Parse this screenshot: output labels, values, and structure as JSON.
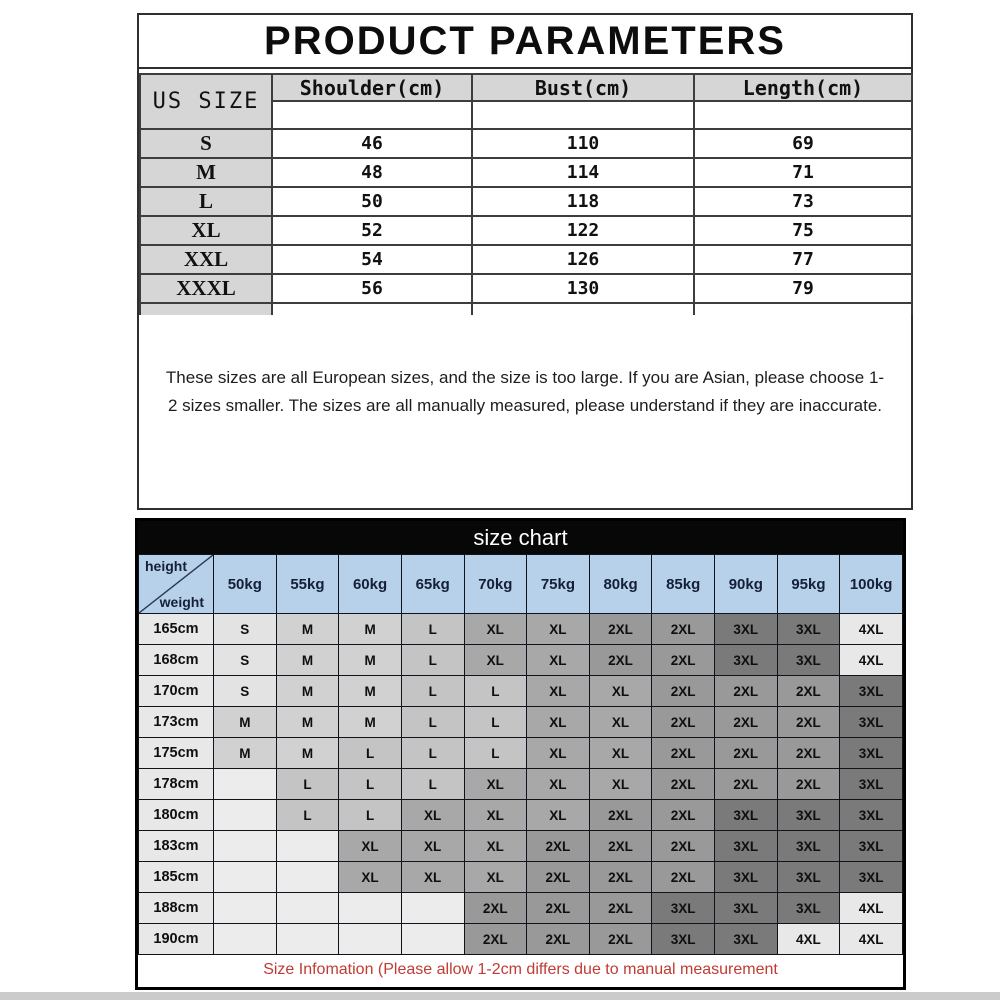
{
  "title": "PRODUCT PARAMETERS",
  "product_table": {
    "corner_label": "US SIZE",
    "columns": [
      "Shoulder(cm)",
      "Bust(cm)",
      "Length(cm)"
    ],
    "rows": [
      {
        "size": "S",
        "values": [
          "46",
          "110",
          "69"
        ]
      },
      {
        "size": "M",
        "values": [
          "48",
          "114",
          "71"
        ]
      },
      {
        "size": "L",
        "values": [
          "50",
          "118",
          "73"
        ]
      },
      {
        "size": "XL",
        "values": [
          "52",
          "122",
          "75"
        ]
      },
      {
        "size": "XXL",
        "values": [
          "54",
          "126",
          "77"
        ]
      },
      {
        "size": "XXXL",
        "values": [
          "56",
          "130",
          "79"
        ]
      }
    ]
  },
  "note": "These sizes are all European sizes, and the size is too large. If you are Asian, please choose 1-2 sizes smaller. The sizes are all manually measured, please understand if they are inaccurate.",
  "size_chart": {
    "title": "size chart",
    "corner": {
      "top_label": "height",
      "bottom_label": "weight"
    },
    "weight_columns": [
      "50kg",
      "55kg",
      "60kg",
      "65kg",
      "70kg",
      "75kg",
      "80kg",
      "85kg",
      "90kg",
      "95kg",
      "100kg"
    ],
    "rows": [
      {
        "height": "165cm",
        "cells": [
          "S",
          "M",
          "M",
          "L",
          "XL",
          "XL",
          "2XL",
          "2XL",
          "3XL",
          "3XL",
          "4XL"
        ]
      },
      {
        "height": "168cm",
        "cells": [
          "S",
          "M",
          "M",
          "L",
          "XL",
          "XL",
          "2XL",
          "2XL",
          "3XL",
          "3XL",
          "4XL"
        ]
      },
      {
        "height": "170cm",
        "cells": [
          "S",
          "M",
          "M",
          "L",
          "L",
          "XL",
          "XL",
          "2XL",
          "2XL",
          "2XL",
          "3XL"
        ]
      },
      {
        "height": "173cm",
        "cells": [
          "M",
          "M",
          "M",
          "L",
          "L",
          "XL",
          "XL",
          "2XL",
          "2XL",
          "2XL",
          "3XL"
        ]
      },
      {
        "height": "175cm",
        "cells": [
          "M",
          "M",
          "L",
          "L",
          "L",
          "XL",
          "XL",
          "2XL",
          "2XL",
          "2XL",
          "3XL"
        ]
      },
      {
        "height": "178cm",
        "cells": [
          "",
          "L",
          "L",
          "L",
          "XL",
          "XL",
          "XL",
          "2XL",
          "2XL",
          "2XL",
          "3XL"
        ]
      },
      {
        "height": "180cm",
        "cells": [
          "",
          "L",
          "L",
          "XL",
          "XL",
          "XL",
          "2XL",
          "2XL",
          "3XL",
          "3XL",
          "3XL"
        ]
      },
      {
        "height": "183cm",
        "cells": [
          "",
          "",
          "XL",
          "XL",
          "XL",
          "2XL",
          "2XL",
          "2XL",
          "3XL",
          "3XL",
          "3XL"
        ]
      },
      {
        "height": "185cm",
        "cells": [
          "",
          "",
          "XL",
          "XL",
          "XL",
          "2XL",
          "2XL",
          "2XL",
          "3XL",
          "3XL",
          "3XL"
        ]
      },
      {
        "height": "188cm",
        "cells": [
          "",
          "",
          "",
          "",
          "2XL",
          "2XL",
          "2XL",
          "3XL",
          "3XL",
          "3XL",
          "4XL"
        ]
      },
      {
        "height": "190cm",
        "cells": [
          "",
          "",
          "",
          "",
          "2XL",
          "2XL",
          "2XL",
          "3XL",
          "3XL",
          "4XL",
          "4XL"
        ]
      }
    ],
    "size_shades": {
      "_blank": "#ececec",
      "S": "#e3e3e3",
      "M": "#d1d1d1",
      "L": "#c4c4c4",
      "XL": "#a8a8a8",
      "2XL": "#999999",
      "3XL": "#7a7a7a",
      "4XL": "#e8e8e8"
    },
    "footer_note": "Size Infomation  (Please allow 1-2cm differs due to manual measurement"
  },
  "colors": {
    "header_blue": "#b8d1ea",
    "navy_text": "#141f38",
    "table_gray": "#d6d6d6",
    "chart_bar_black": "#070707",
    "footer_red": "#c13b33"
  }
}
